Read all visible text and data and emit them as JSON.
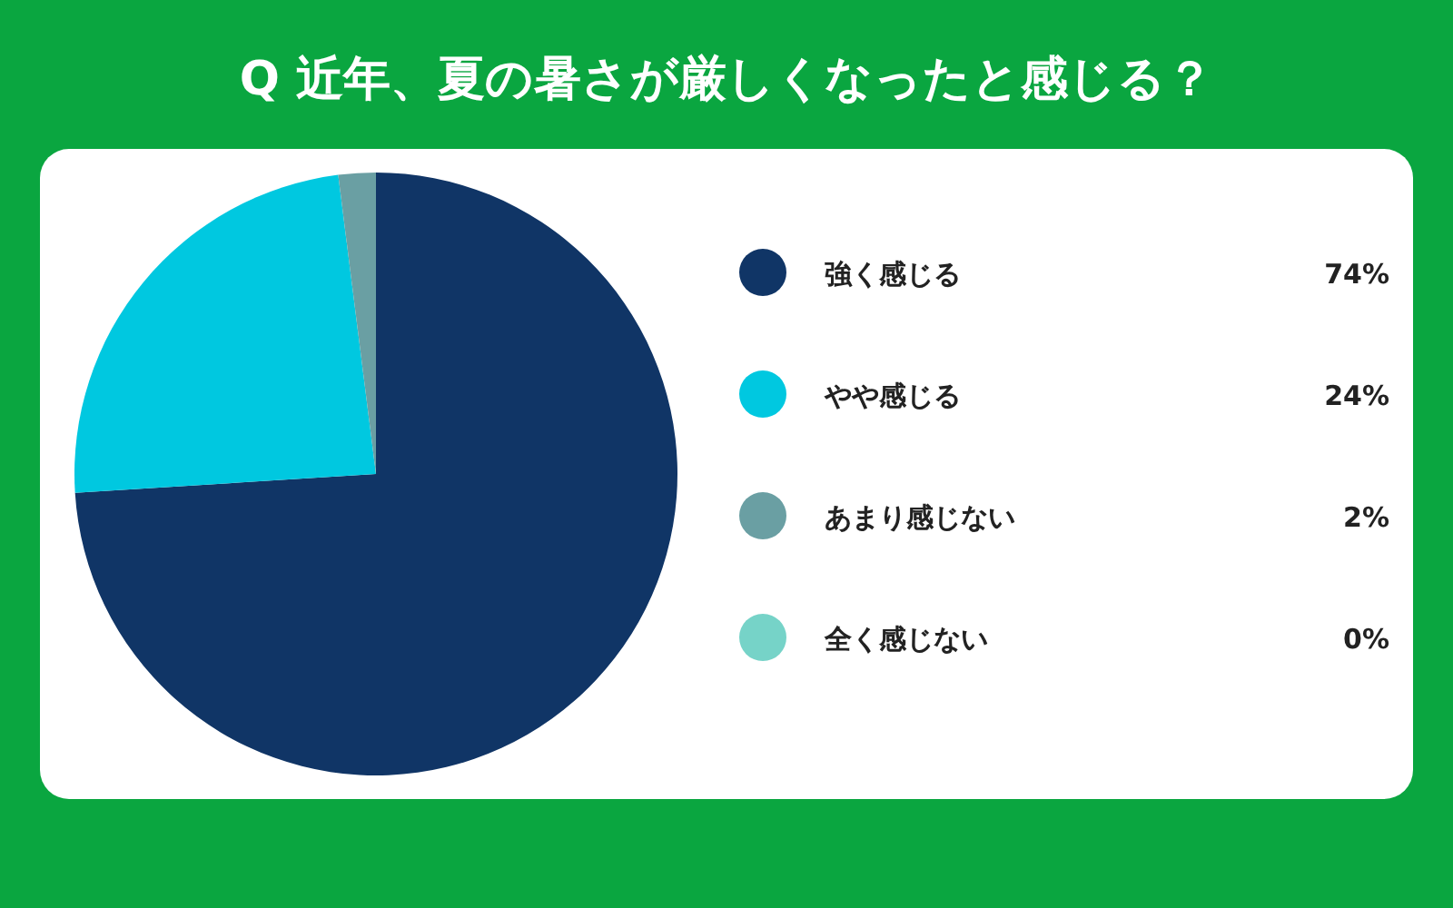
{
  "chart_data": {
    "type": "pie",
    "title": "Q 近年、夏の暑さが厳しくなったと感じる？",
    "categories": [
      "強く感じる",
      "やや感じる",
      "あまり感じない",
      "全く感じない"
    ],
    "values": [
      74,
      24,
      2,
      0
    ],
    "value_labels": [
      "74%",
      "24%",
      "2%",
      "0%"
    ],
    "colors": [
      "#103566",
      "#00c8e0",
      "#6a9fa3",
      "#76d3c8"
    ],
    "legend": "right"
  }
}
